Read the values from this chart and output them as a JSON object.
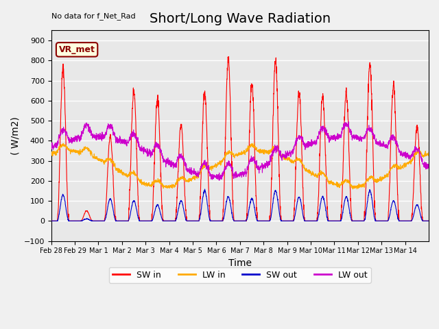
{
  "title": "Short/Long Wave Radiation",
  "xlabel": "Time",
  "ylabel": "( W/m2)",
  "ylim": [
    -100,
    950
  ],
  "yticks": [
    -100,
    0,
    100,
    200,
    300,
    400,
    500,
    600,
    700,
    800,
    900
  ],
  "xtick_labels": [
    "Feb 28",
    "Feb 29",
    "Mar 1",
    "Mar 2",
    "Mar 3",
    "Mar 4",
    "Mar 5",
    "Mar 6",
    "Mar 7",
    "Mar 8",
    "Mar 9",
    "Mar 10",
    "Mar 11",
    "Mar 12",
    "Mar 13",
    "Mar 14"
  ],
  "annotation_text": "No data for f_Net_Rad",
  "station_label": "VR_met",
  "colors": {
    "SW_in": "#ff0000",
    "LW_in": "#ffaa00",
    "SW_out": "#0000cc",
    "LW_out": "#cc00cc"
  },
  "legend_labels": [
    "SW in",
    "LW in",
    "SW out",
    "LW out"
  ],
  "background_color": "#e8e8e8",
  "grid_color": "#ffffff",
  "title_fontsize": 14,
  "label_fontsize": 10,
  "n_days": 16,
  "points_per_day": 144,
  "SW_in_peaks": [
    760,
    50,
    420,
    650,
    610,
    480,
    640,
    800,
    680,
    800,
    640,
    620,
    640,
    780,
    680,
    470
  ],
  "SW_out_peaks": [
    130,
    10,
    110,
    100,
    80,
    100,
    150,
    120,
    110,
    150,
    120,
    120,
    120,
    150,
    100,
    80
  ],
  "LW_in_base": 260,
  "LW_in_amp": 90,
  "LW_out_base": 320,
  "LW_out_amp": 100
}
